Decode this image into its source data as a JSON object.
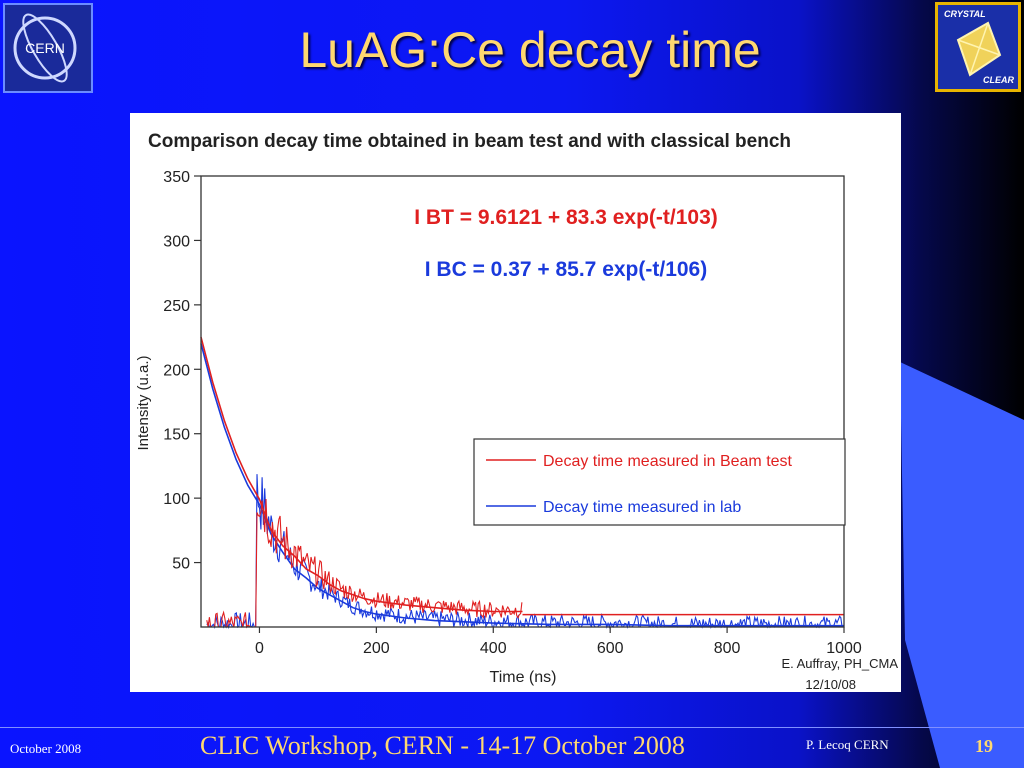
{
  "slide": {
    "title": "LuAG:Ce decay time",
    "footer_left": "October 2008",
    "footer_center": "CLIC Workshop, CERN - 14-17 October 2008",
    "footer_right": "P. Lecoq  CERN",
    "page_number": "19",
    "logo_left_text": "CERN",
    "logo_right_top": "CRYSTAL",
    "logo_right_bottom": "CLEAR",
    "colors": {
      "title": "#ffd870",
      "background": "#0c18f2",
      "accent_wedge": "#3a5cff"
    }
  },
  "chart_data": {
    "type": "line",
    "title": "Comparison decay time obtained in beam test and with classical bench",
    "xlabel": "Time (ns)",
    "ylabel": "Intensity (u.a.)",
    "xlim": [
      -100,
      1000
    ],
    "ylim": [
      0,
      350
    ],
    "xticks": [
      0,
      200,
      400,
      600,
      800,
      1000
    ],
    "yticks": [
      50,
      100,
      150,
      200,
      250,
      300,
      350
    ],
    "annotations": [
      {
        "text": "I BT = 9.6121 + 83.3 exp(-t/103)",
        "color": "#e02020"
      },
      {
        "text": "I BC = 0.37 + 85.7 exp(-t/106)",
        "color": "#1a3adc"
      }
    ],
    "credit": [
      "E. Auffray, PH_CMA",
      "12/10/08"
    ],
    "legend_position": "center-right",
    "series": [
      {
        "name": "Decay time measured in Beam test",
        "color": "#e02020",
        "x": [
          -100,
          -80,
          -60,
          -40,
          -20,
          0,
          20,
          40,
          60,
          80,
          100,
          120,
          140,
          160,
          180,
          200,
          250,
          300,
          350,
          400,
          450
        ],
        "y": [
          225,
          190,
          160,
          135,
          115,
          99,
          75,
          63,
          55,
          45,
          40,
          33,
          28,
          25,
          22,
          20,
          17,
          15,
          13,
          12,
          12
        ]
      },
      {
        "name": "Decay time measured in lab",
        "color": "#1a3adc",
        "x": [
          -100,
          -80,
          -60,
          -40,
          -20,
          0,
          20,
          40,
          60,
          80,
          100,
          120,
          140,
          160,
          180,
          200,
          250,
          300,
          350,
          400,
          500,
          600,
          700,
          800,
          900,
          1000
        ],
        "y": [
          220,
          185,
          155,
          130,
          110,
          95,
          72,
          58,
          45,
          38,
          30,
          25,
          20,
          15,
          12,
          10,
          7,
          5,
          4,
          3,
          2,
          2,
          1,
          1,
          1,
          1
        ]
      }
    ]
  }
}
